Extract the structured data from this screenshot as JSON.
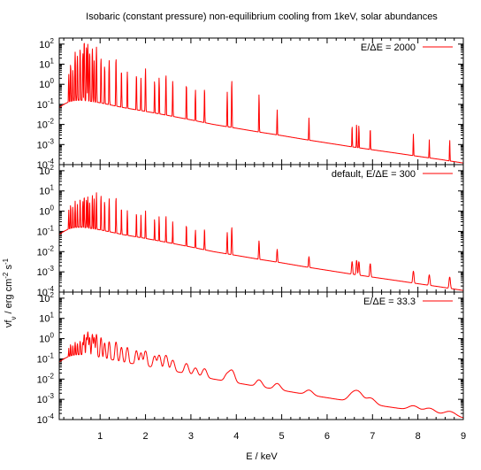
{
  "figure_title": "Isobaric (constant pressure) non-equilibrium cooling from 1keV, solar abundances",
  "xlabel": "E / keV",
  "ylabel": "νfν / erg cm⁻² s⁻¹",
  "ylabel_parts": {
    "main": "νf",
    "sub": "ν",
    "mid": " / erg cm",
    "sup1": "-2",
    "mid2": " s",
    "sup2": "-1"
  },
  "x_tick_labels": [
    "1",
    "2",
    "3",
    "4",
    "5",
    "6",
    "7",
    "8",
    "9"
  ],
  "y_tick_labels": [
    {
      "base": "10",
      "exp": "-4"
    },
    {
      "base": "10",
      "exp": "-3"
    },
    {
      "base": "10",
      "exp": "-2"
    },
    {
      "base": "10",
      "exp": "-1"
    },
    {
      "base": "10",
      "exp": "0"
    },
    {
      "base": "10",
      "exp": "1"
    },
    {
      "base": "10",
      "exp": "2"
    }
  ],
  "colors": {
    "series": "#ff0000",
    "frame": "#000000"
  },
  "chart_data": [
    {
      "type": "line",
      "legend": "E/ΔE = 2000",
      "legend_position": "top-right",
      "xlim": [
        0.1,
        9
      ],
      "ylim": [
        0.0001,
        200
      ],
      "yscale": "log",
      "resolution": 2000,
      "continuum": [
        [
          0.1,
          0.07
        ],
        [
          0.2,
          0.1
        ],
        [
          0.3,
          0.13
        ],
        [
          0.4,
          0.15
        ],
        [
          0.5,
          0.16
        ],
        [
          0.6,
          0.16
        ],
        [
          0.8,
          0.14
        ],
        [
          1.0,
          0.12
        ],
        [
          1.5,
          0.07
        ],
        [
          2.0,
          0.045
        ],
        [
          2.5,
          0.028
        ],
        [
          3.0,
          0.017
        ],
        [
          3.5,
          0.01
        ],
        [
          4.0,
          0.0065
        ],
        [
          4.5,
          0.0042
        ],
        [
          5.0,
          0.0028
        ],
        [
          5.5,
          0.0018
        ],
        [
          6.0,
          0.0012
        ],
        [
          6.5,
          0.0008
        ],
        [
          7.0,
          0.00055
        ],
        [
          7.5,
          0.00038
        ],
        [
          8.0,
          0.00026
        ],
        [
          8.5,
          0.00018
        ],
        [
          9.0,
          0.00012
        ]
      ],
      "lines": [
        [
          0.31,
          3
        ],
        [
          0.35,
          10
        ],
        [
          0.4,
          5
        ],
        [
          0.45,
          40
        ],
        [
          0.5,
          25
        ],
        [
          0.56,
          60
        ],
        [
          0.62,
          35
        ],
        [
          0.65,
          150
        ],
        [
          0.7,
          80
        ],
        [
          0.73,
          100
        ],
        [
          0.77,
          40
        ],
        [
          0.83,
          60
        ],
        [
          0.87,
          15
        ],
        [
          0.92,
          70
        ],
        [
          1.02,
          20
        ],
        [
          1.1,
          8
        ],
        [
          1.2,
          15
        ],
        [
          1.35,
          20
        ],
        [
          1.47,
          5
        ],
        [
          1.6,
          4
        ],
        [
          1.8,
          3
        ],
        [
          1.9,
          2
        ],
        [
          2.0,
          6
        ],
        [
          2.2,
          1.5
        ],
        [
          2.3,
          2
        ],
        [
          2.45,
          3
        ],
        [
          2.6,
          1.5
        ],
        [
          2.9,
          1
        ],
        [
          3.1,
          0.5
        ],
        [
          3.3,
          0.6
        ],
        [
          3.8,
          0.4
        ],
        [
          3.9,
          1.5
        ],
        [
          4.5,
          0.3
        ],
        [
          4.9,
          0.05
        ],
        [
          5.6,
          0.02
        ],
        [
          6.55,
          0.008
        ],
        [
          6.65,
          0.01
        ],
        [
          6.7,
          0.008
        ],
        [
          6.95,
          0.006
        ],
        [
          7.9,
          0.003
        ],
        [
          8.25,
          0.0015
        ],
        [
          8.7,
          0.0015
        ]
      ]
    },
    {
      "type": "line",
      "legend": "default, E/ΔE = 300",
      "legend_position": "top-right",
      "xlim": [
        0.1,
        9
      ],
      "ylim": [
        0.0001,
        200
      ],
      "yscale": "log",
      "resolution": 300,
      "continuum": [
        [
          0.1,
          0.07
        ],
        [
          0.2,
          0.1
        ],
        [
          0.3,
          0.13
        ],
        [
          0.4,
          0.15
        ],
        [
          0.5,
          0.16
        ],
        [
          0.6,
          0.16
        ],
        [
          0.8,
          0.14
        ],
        [
          1.0,
          0.12
        ],
        [
          1.5,
          0.07
        ],
        [
          2.0,
          0.045
        ],
        [
          2.5,
          0.028
        ],
        [
          3.0,
          0.017
        ],
        [
          3.5,
          0.01
        ],
        [
          4.0,
          0.0065
        ],
        [
          4.5,
          0.0042
        ],
        [
          5.0,
          0.0028
        ],
        [
          5.5,
          0.0018
        ],
        [
          6.0,
          0.0012
        ],
        [
          6.5,
          0.0008
        ],
        [
          7.0,
          0.00055
        ],
        [
          7.5,
          0.00038
        ],
        [
          8.0,
          0.00026
        ],
        [
          8.5,
          0.00018
        ],
        [
          9.0,
          0.00012
        ]
      ],
      "lines": [
        [
          0.31,
          1
        ],
        [
          0.35,
          2
        ],
        [
          0.4,
          1.5
        ],
        [
          0.45,
          3
        ],
        [
          0.5,
          2
        ],
        [
          0.56,
          4
        ],
        [
          0.62,
          3
        ],
        [
          0.65,
          6
        ],
        [
          0.7,
          4
        ],
        [
          0.73,
          5
        ],
        [
          0.77,
          3
        ],
        [
          0.83,
          6
        ],
        [
          0.87,
          4
        ],
        [
          0.92,
          8
        ],
        [
          1.02,
          6
        ],
        [
          1.1,
          3
        ],
        [
          1.2,
          4
        ],
        [
          1.35,
          5
        ],
        [
          1.47,
          1.5
        ],
        [
          1.6,
          1
        ],
        [
          1.8,
          0.8
        ],
        [
          1.9,
          0.6
        ],
        [
          2.0,
          1
        ],
        [
          2.2,
          0.4
        ],
        [
          2.3,
          0.5
        ],
        [
          2.45,
          0.6
        ],
        [
          2.6,
          0.3
        ],
        [
          2.9,
          0.2
        ],
        [
          3.1,
          0.1
        ],
        [
          3.3,
          0.12
        ],
        [
          3.8,
          0.08
        ],
        [
          3.9,
          0.15
        ],
        [
          4.5,
          0.03
        ],
        [
          4.9,
          0.01
        ],
        [
          5.6,
          0.004
        ],
        [
          6.55,
          0.0025
        ],
        [
          6.65,
          0.003
        ],
        [
          6.7,
          0.0025
        ],
        [
          6.95,
          0.002
        ],
        [
          7.9,
          0.0008
        ],
        [
          8.25,
          0.0005
        ],
        [
          8.7,
          0.0004
        ]
      ]
    },
    {
      "type": "line",
      "legend": "E/ΔE = 33.3",
      "legend_position": "top-right",
      "xlim": [
        0.1,
        9
      ],
      "ylim": [
        0.0001,
        200
      ],
      "yscale": "log",
      "resolution": 33.3,
      "continuum": [
        [
          0.1,
          0.07
        ],
        [
          0.2,
          0.1
        ],
        [
          0.3,
          0.13
        ],
        [
          0.4,
          0.15
        ],
        [
          0.5,
          0.16
        ],
        [
          0.6,
          0.16
        ],
        [
          0.8,
          0.14
        ],
        [
          1.0,
          0.12
        ],
        [
          1.5,
          0.07
        ],
        [
          2.0,
          0.045
        ],
        [
          2.5,
          0.028
        ],
        [
          3.0,
          0.017
        ],
        [
          3.5,
          0.01
        ],
        [
          4.0,
          0.0065
        ],
        [
          4.5,
          0.0042
        ],
        [
          5.0,
          0.0028
        ],
        [
          5.5,
          0.0018
        ],
        [
          6.0,
          0.0012
        ],
        [
          6.5,
          0.0008
        ],
        [
          7.0,
          0.00055
        ],
        [
          7.5,
          0.00038
        ],
        [
          8.0,
          0.00026
        ],
        [
          8.5,
          0.00018
        ],
        [
          9.0,
          0.00012
        ]
      ],
      "lines": [
        [
          0.31,
          0.2
        ],
        [
          0.35,
          0.4
        ],
        [
          0.4,
          0.3
        ],
        [
          0.45,
          0.5
        ],
        [
          0.5,
          0.4
        ],
        [
          0.56,
          0.6
        ],
        [
          0.62,
          0.5
        ],
        [
          0.65,
          1.5
        ],
        [
          0.7,
          1
        ],
        [
          0.73,
          2
        ],
        [
          0.77,
          1
        ],
        [
          0.83,
          1.5
        ],
        [
          0.87,
          1
        ],
        [
          0.92,
          1.5
        ],
        [
          1.02,
          1
        ],
        [
          1.1,
          0.5
        ],
        [
          1.2,
          0.6
        ],
        [
          1.35,
          0.6
        ],
        [
          1.47,
          0.3
        ],
        [
          1.6,
          0.3
        ],
        [
          1.8,
          0.2
        ],
        [
          1.9,
          0.15
        ],
        [
          2.0,
          0.2
        ],
        [
          2.2,
          0.1
        ],
        [
          2.3,
          0.12
        ],
        [
          2.45,
          0.12
        ],
        [
          2.6,
          0.06
        ],
        [
          2.9,
          0.04
        ],
        [
          3.1,
          0.02
        ],
        [
          3.3,
          0.02
        ],
        [
          3.8,
          0.01
        ],
        [
          3.9,
          0.02
        ],
        [
          4.5,
          0.005
        ],
        [
          4.9,
          0.003
        ],
        [
          5.6,
          0.0012
        ],
        [
          6.55,
          0.0008
        ],
        [
          6.65,
          0.001
        ],
        [
          6.7,
          0.0008
        ],
        [
          6.95,
          0.0006
        ],
        [
          7.9,
          0.0002
        ],
        [
          8.25,
          0.00015
        ],
        [
          8.7,
          0.0001
        ]
      ]
    }
  ]
}
